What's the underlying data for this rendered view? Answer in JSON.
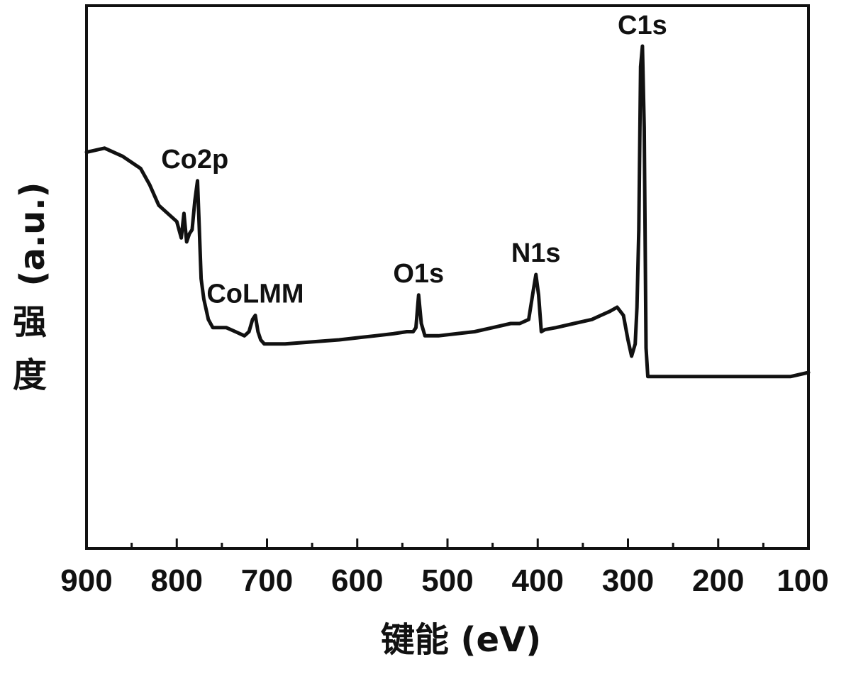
{
  "chart_data": {
    "type": "line",
    "xlabel": "键能 (eV)",
    "ylabel_cn": "强度",
    "ylabel_unit": "(a.u.)",
    "xlim": [
      900,
      100
    ],
    "ylim": [
      0,
      100
    ],
    "x_ticks": [
      900,
      800,
      700,
      600,
      500,
      400,
      300,
      200,
      100
    ],
    "grid": false,
    "legend": "none",
    "line_color": "#111111",
    "series": [
      {
        "x": [
          900,
          880,
          860,
          840,
          830,
          820,
          810,
          800,
          795,
          792,
          789,
          786,
          783,
          780,
          777,
          775,
          773,
          770,
          765,
          760,
          755,
          745,
          735,
          725,
          720,
          716,
          713,
          710,
          707,
          703,
          695,
          680,
          650,
          620,
          600,
          580,
          560,
          545,
          538,
          535,
          532,
          529,
          525,
          510,
          490,
          470,
          450,
          430,
          420,
          410,
          405,
          402,
          399,
          396,
          392,
          380,
          360,
          340,
          330,
          320,
          312,
          305,
          300,
          296,
          292,
          290,
          288,
          286,
          284,
          282,
          280,
          278,
          270,
          250,
          220,
          200,
          180,
          150,
          120,
          100
        ],
        "y": [
          74,
          75,
          73,
          70,
          66,
          61,
          59,
          57,
          53,
          59,
          52,
          54,
          55,
          62,
          67,
          55,
          43,
          38,
          33,
          31,
          31,
          31,
          30,
          29,
          30,
          33,
          34,
          30,
          28,
          27,
          27,
          27,
          27.5,
          28,
          28.5,
          29,
          29.5,
          30,
          30,
          31,
          39,
          32,
          29,
          29,
          29.5,
          30,
          31,
          32,
          32,
          33,
          40,
          44,
          39,
          30,
          30.5,
          31,
          32,
          33,
          34,
          35,
          36,
          34,
          28,
          24,
          27,
          36,
          55,
          95,
          100,
          80,
          26,
          19,
          19,
          19,
          19,
          19,
          19,
          19,
          19,
          20
        ]
      }
    ],
    "annotations": [
      {
        "text": "C1s",
        "x": 284
      },
      {
        "text": "Co2p",
        "x": 780
      },
      {
        "text": "CoLMM",
        "x": 713
      },
      {
        "text": "O1s",
        "x": 532
      },
      {
        "text": "N1s",
        "x": 402
      }
    ]
  }
}
